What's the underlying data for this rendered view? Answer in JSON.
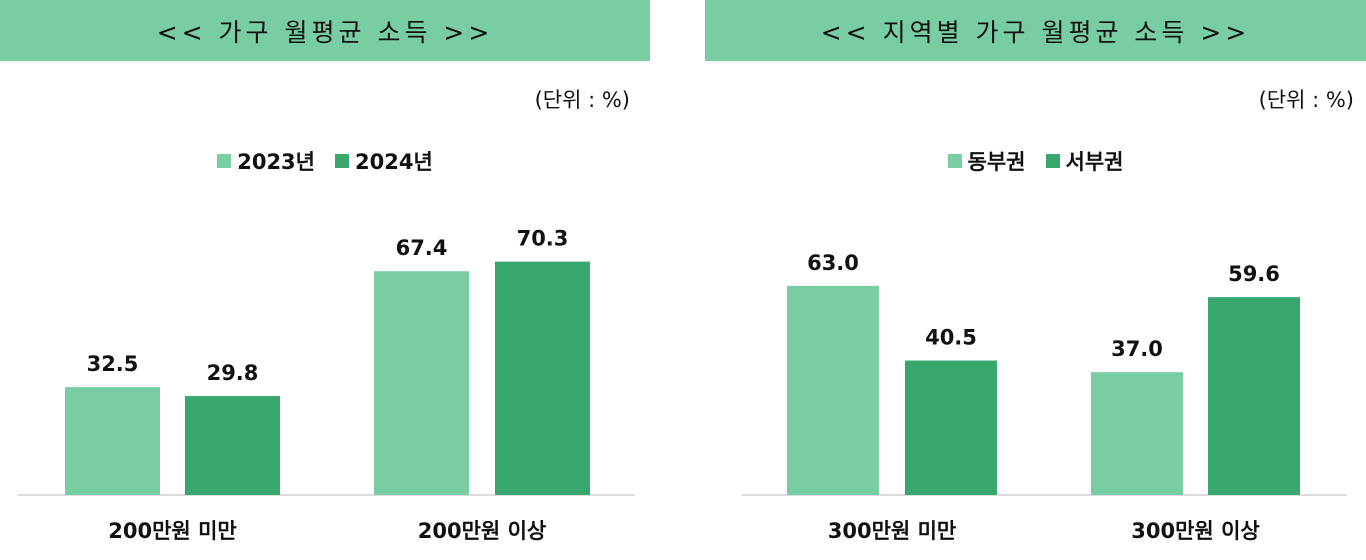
{
  "colors": {
    "banner": "#78cda2",
    "light": "#78cda2",
    "dark": "#37a76e",
    "axis": "#d0d0d0"
  },
  "chart_data": [
    {
      "type": "bar",
      "title": "<< 가구 월평균 소득 >>",
      "unit_note": "(단위 : %)",
      "categories": [
        "200만원 미만",
        "200만원 이상"
      ],
      "series": [
        {
          "name": "2023년",
          "values": [
            32.5,
            67.4
          ]
        },
        {
          "name": "2024년",
          "values": [
            29.8,
            70.3
          ]
        }
      ],
      "ylim": [
        0,
        80
      ],
      "grid": false,
      "legend": "top-center"
    },
    {
      "type": "bar",
      "title": "<< 지역별 가구 월평균 소득 >>",
      "unit_note": "(단위 : %)",
      "categories": [
        "300만원 미만",
        "300만원 이상"
      ],
      "series": [
        {
          "name": "동부권",
          "values": [
            63.0,
            37.0
          ]
        },
        {
          "name": "서부권",
          "values": [
            40.5,
            59.6
          ]
        }
      ],
      "ylim": [
        0,
        80
      ],
      "grid": false,
      "legend": "top-center"
    }
  ]
}
